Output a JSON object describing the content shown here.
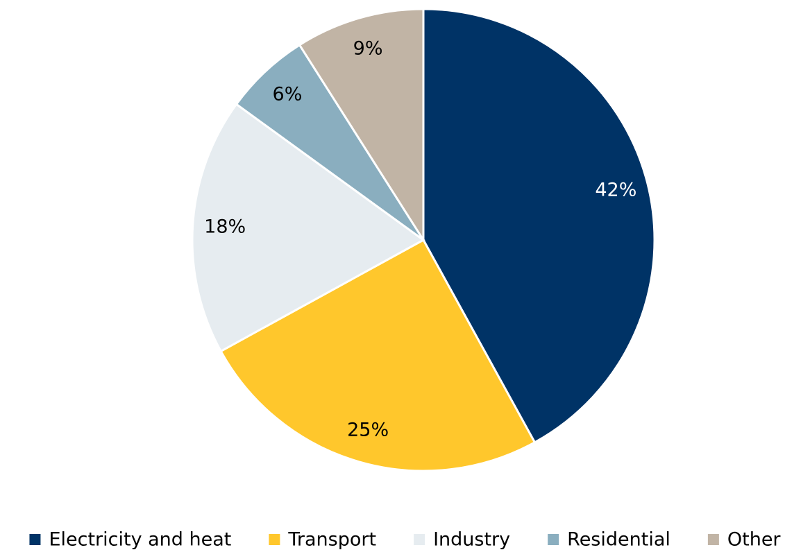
{
  "chart_data": {
    "type": "pie",
    "categories": [
      "Electricity and heat",
      "Transport",
      "Industry",
      "Residential",
      "Other"
    ],
    "values": [
      42,
      25,
      18,
      6,
      9
    ],
    "value_labels": [
      "42%",
      "25%",
      "18%",
      "6%",
      "9%"
    ],
    "colors": [
      "#003366",
      "#ffc72c",
      "#e6ecf0",
      "#8aaebf",
      "#c1b4a5"
    ],
    "legend": "bottom"
  }
}
